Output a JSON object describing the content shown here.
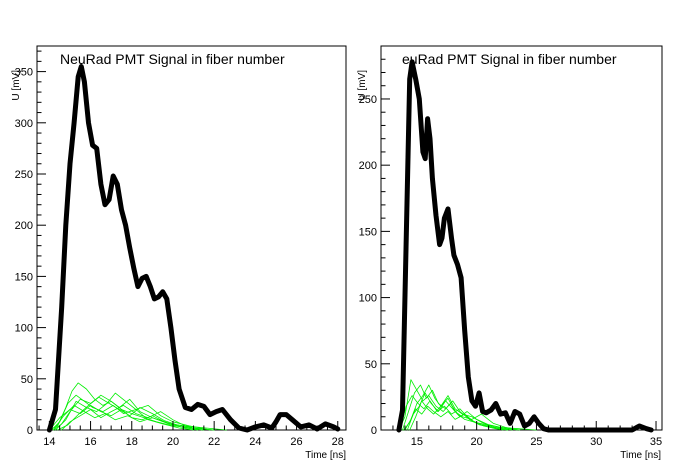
{
  "chart_data": [
    {
      "type": "line",
      "title": "NeuRad PMT Signal in fiber number",
      "xlabel": "Time [ns]",
      "ylabel": "U [mV]",
      "xlim": [
        13.4,
        28.4
      ],
      "ylim": [
        0,
        375
      ],
      "xticks": [
        14,
        16,
        18,
        20,
        22,
        24,
        26,
        28
      ],
      "yticks": [
        0,
        50,
        100,
        150,
        200,
        250,
        300,
        350
      ],
      "grid": false,
      "series": [
        {
          "color": "#000000",
          "role": "sum",
          "x": [
            14.0,
            14.3,
            14.6,
            14.8,
            15.0,
            15.2,
            15.4,
            15.55,
            15.7,
            15.9,
            16.1,
            16.3,
            16.5,
            16.7,
            16.9,
            17.1,
            17.3,
            17.5,
            17.7,
            17.9,
            18.1,
            18.3,
            18.5,
            18.7,
            18.9,
            19.1,
            19.3,
            19.5,
            19.7,
            19.9,
            20.1,
            20.3,
            20.6,
            20.9,
            21.2,
            21.5,
            21.8,
            22.1,
            22.4,
            22.8,
            23.2,
            23.6,
            24.0,
            24.4,
            24.8,
            25.0,
            25.2,
            25.5,
            25.8,
            26.2,
            26.6,
            27.0,
            27.4,
            27.8,
            28.0
          ],
          "y": [
            0,
            20,
            120,
            200,
            260,
            300,
            345,
            355,
            340,
            300,
            278,
            275,
            240,
            220,
            225,
            248,
            240,
            215,
            200,
            178,
            158,
            140,
            148,
            150,
            140,
            128,
            130,
            135,
            128,
            100,
            68,
            40,
            22,
            20,
            25,
            23,
            15,
            18,
            20,
            10,
            2,
            0,
            3,
            5,
            2,
            8,
            15,
            15,
            10,
            3,
            5,
            1,
            6,
            3,
            1
          ]
        },
        {
          "color": "#00ee00",
          "role": "fiber",
          "x": [
            14.0,
            14.4,
            14.8,
            15.1,
            15.4,
            15.8,
            16.2,
            16.6,
            17.0,
            17.5,
            18.0,
            18.6,
            19.2,
            20.0,
            21.0,
            22.0
          ],
          "y": [
            0,
            4,
            22,
            38,
            46,
            40,
            30,
            24,
            28,
            20,
            16,
            12,
            8,
            4,
            2,
            0
          ]
        },
        {
          "color": "#00ee00",
          "role": "fiber",
          "x": [
            14.2,
            14.6,
            15.0,
            15.5,
            16.0,
            16.5,
            17.0,
            17.4,
            17.9,
            18.4,
            19.0,
            19.6,
            20.4,
            21.2
          ],
          "y": [
            0,
            6,
            18,
            30,
            26,
            34,
            28,
            22,
            30,
            18,
            12,
            8,
            3,
            0
          ]
        },
        {
          "color": "#00ee00",
          "role": "fiber",
          "x": [
            14.3,
            14.8,
            15.3,
            15.8,
            16.3,
            16.8,
            17.2,
            17.7,
            18.2,
            18.8,
            19.4,
            20.0,
            20.8,
            21.8
          ],
          "y": [
            0,
            10,
            28,
            22,
            18,
            26,
            36,
            28,
            20,
            24,
            14,
            8,
            4,
            0
          ]
        },
        {
          "color": "#00ee00",
          "role": "fiber",
          "x": [
            14.1,
            14.5,
            14.9,
            15.3,
            15.7,
            16.1,
            16.6,
            17.1,
            17.6,
            18.2,
            18.8,
            19.5,
            20.3,
            21.0
          ],
          "y": [
            0,
            8,
            26,
            34,
            28,
            22,
            18,
            24,
            16,
            20,
            10,
            6,
            2,
            0
          ]
        },
        {
          "color": "#00ee00",
          "role": "fiber",
          "x": [
            14.4,
            14.9,
            15.4,
            15.9,
            16.4,
            16.9,
            17.4,
            17.9,
            18.4,
            19.0,
            19.6,
            20.2,
            21.0,
            22.0
          ],
          "y": [
            0,
            5,
            15,
            24,
            32,
            26,
            20,
            14,
            22,
            16,
            9,
            5,
            2,
            0
          ]
        },
        {
          "color": "#00ee00",
          "role": "fiber",
          "x": [
            14.0,
            14.5,
            15.0,
            15.5,
            16.0,
            16.5,
            17.0,
            17.5,
            18.0,
            18.5,
            19.0,
            19.8,
            20.6,
            21.5
          ],
          "y": [
            0,
            12,
            20,
            16,
            24,
            18,
            14,
            20,
            12,
            10,
            14,
            6,
            2,
            0
          ]
        },
        {
          "color": "#00ee00",
          "role": "fiber",
          "x": [
            14.6,
            15.0,
            15.5,
            16.0,
            16.5,
            17.0,
            17.6,
            18.2,
            18.8,
            19.4,
            20.0,
            20.6,
            21.4
          ],
          "y": [
            0,
            8,
            14,
            20,
            12,
            18,
            24,
            16,
            12,
            18,
            10,
            4,
            0
          ]
        },
        {
          "color": "#00ee00",
          "role": "fiber",
          "x": [
            14.2,
            14.7,
            15.2,
            15.7,
            16.2,
            16.7,
            17.2,
            17.8,
            18.4,
            19.0,
            19.8,
            20.6,
            21.6,
            22.6
          ],
          "y": [
            0,
            14,
            24,
            18,
            12,
            16,
            10,
            14,
            8,
            12,
            6,
            4,
            2,
            0
          ]
        }
      ]
    },
    {
      "type": "line",
      "title": "euRad PMT Signal in fiber number",
      "xlabel": "Time [ns]",
      "ylabel": "U [mV]",
      "xlim": [
        12.0,
        35.5
      ],
      "ylim": [
        0,
        290
      ],
      "xticks": [
        15,
        20,
        25,
        30,
        35
      ],
      "yticks": [
        0,
        50,
        100,
        150,
        200,
        250
      ],
      "grid": false,
      "series": [
        {
          "color": "#000000",
          "role": "sum",
          "x": [
            13.5,
            13.8,
            14.1,
            14.4,
            14.6,
            14.9,
            15.2,
            15.5,
            15.7,
            15.9,
            16.1,
            16.3,
            16.6,
            16.9,
            17.1,
            17.3,
            17.6,
            17.9,
            18.1,
            18.4,
            18.7,
            19.0,
            19.3,
            19.6,
            19.9,
            20.2,
            20.5,
            20.8,
            21.2,
            21.6,
            22.0,
            22.4,
            22.8,
            23.2,
            23.6,
            24.0,
            24.4,
            24.8,
            25.2,
            25.6,
            26.0,
            26.4,
            27.0,
            28.0,
            29.0,
            30.0,
            31.0,
            32.0,
            33.0,
            33.6,
            34.2,
            34.6
          ],
          "y": [
            0,
            15,
            140,
            265,
            278,
            265,
            250,
            210,
            205,
            235,
            220,
            190,
            162,
            140,
            145,
            160,
            167,
            145,
            132,
            125,
            115,
            75,
            40,
            22,
            18,
            28,
            14,
            13,
            15,
            20,
            12,
            13,
            5,
            14,
            12,
            3,
            5,
            10,
            5,
            1,
            0,
            0,
            0,
            0,
            0,
            0,
            0,
            0,
            0,
            3,
            1,
            0
          ]
        },
        {
          "color": "#00ee00",
          "role": "fiber",
          "x": [
            13.5,
            14.0,
            14.5,
            15.0,
            15.5,
            16.0,
            16.6,
            17.2,
            17.8,
            18.4,
            19.0,
            19.8,
            20.6,
            21.6,
            22.6
          ],
          "y": [
            0,
            10,
            38,
            30,
            22,
            26,
            18,
            14,
            20,
            12,
            8,
            6,
            3,
            1,
            0
          ]
        },
        {
          "color": "#00ee00",
          "role": "fiber",
          "x": [
            13.8,
            14.3,
            14.8,
            15.3,
            15.8,
            16.3,
            16.8,
            17.4,
            18.0,
            18.6,
            19.4,
            20.2,
            21.2,
            22.2
          ],
          "y": [
            0,
            14,
            28,
            34,
            24,
            30,
            20,
            16,
            22,
            14,
            8,
            4,
            2,
            0
          ]
        },
        {
          "color": "#00ee00",
          "role": "fiber",
          "x": [
            14.0,
            14.5,
            15.0,
            15.5,
            16.0,
            16.5,
            17.0,
            17.6,
            18.2,
            18.8,
            19.6,
            20.4,
            21.4,
            22.6
          ],
          "y": [
            0,
            8,
            20,
            26,
            34,
            24,
            18,
            26,
            16,
            12,
            10,
            6,
            2,
            0
          ]
        },
        {
          "color": "#00ee00",
          "role": "fiber",
          "x": [
            13.6,
            14.1,
            14.6,
            15.1,
            15.6,
            16.1,
            16.7,
            17.3,
            17.9,
            18.6,
            19.4,
            20.4,
            21.6,
            23.0
          ],
          "y": [
            0,
            18,
            26,
            20,
            16,
            22,
            14,
            18,
            12,
            16,
            8,
            4,
            2,
            0
          ]
        },
        {
          "color": "#00ee00",
          "role": "fiber",
          "x": [
            14.2,
            14.7,
            15.2,
            15.7,
            16.2,
            16.8,
            17.4,
            18.0,
            18.6,
            19.2,
            20.0,
            21.0,
            22.0,
            23.4
          ],
          "y": [
            0,
            12,
            18,
            28,
            20,
            14,
            22,
            16,
            10,
            14,
            8,
            4,
            2,
            0
          ]
        },
        {
          "color": "#00ee00",
          "role": "fiber",
          "x": [
            13.9,
            14.4,
            14.9,
            15.4,
            15.9,
            16.4,
            17.0,
            17.6,
            18.2,
            19.0,
            19.8,
            20.8,
            22.0,
            23.5,
            25.0
          ],
          "y": [
            0,
            6,
            16,
            12,
            18,
            14,
            10,
            14,
            8,
            12,
            6,
            4,
            2,
            1,
            0
          ]
        },
        {
          "color": "#00ee00",
          "role": "fiber",
          "x": [
            14.4,
            14.9,
            15.4,
            15.9,
            16.4,
            17.0,
            17.6,
            18.2,
            18.8,
            19.6,
            20.4,
            21.4,
            22.4,
            23.6
          ],
          "y": [
            0,
            10,
            22,
            16,
            12,
            18,
            24,
            14,
            10,
            8,
            12,
            5,
            2,
            0
          ]
        }
      ]
    }
  ]
}
